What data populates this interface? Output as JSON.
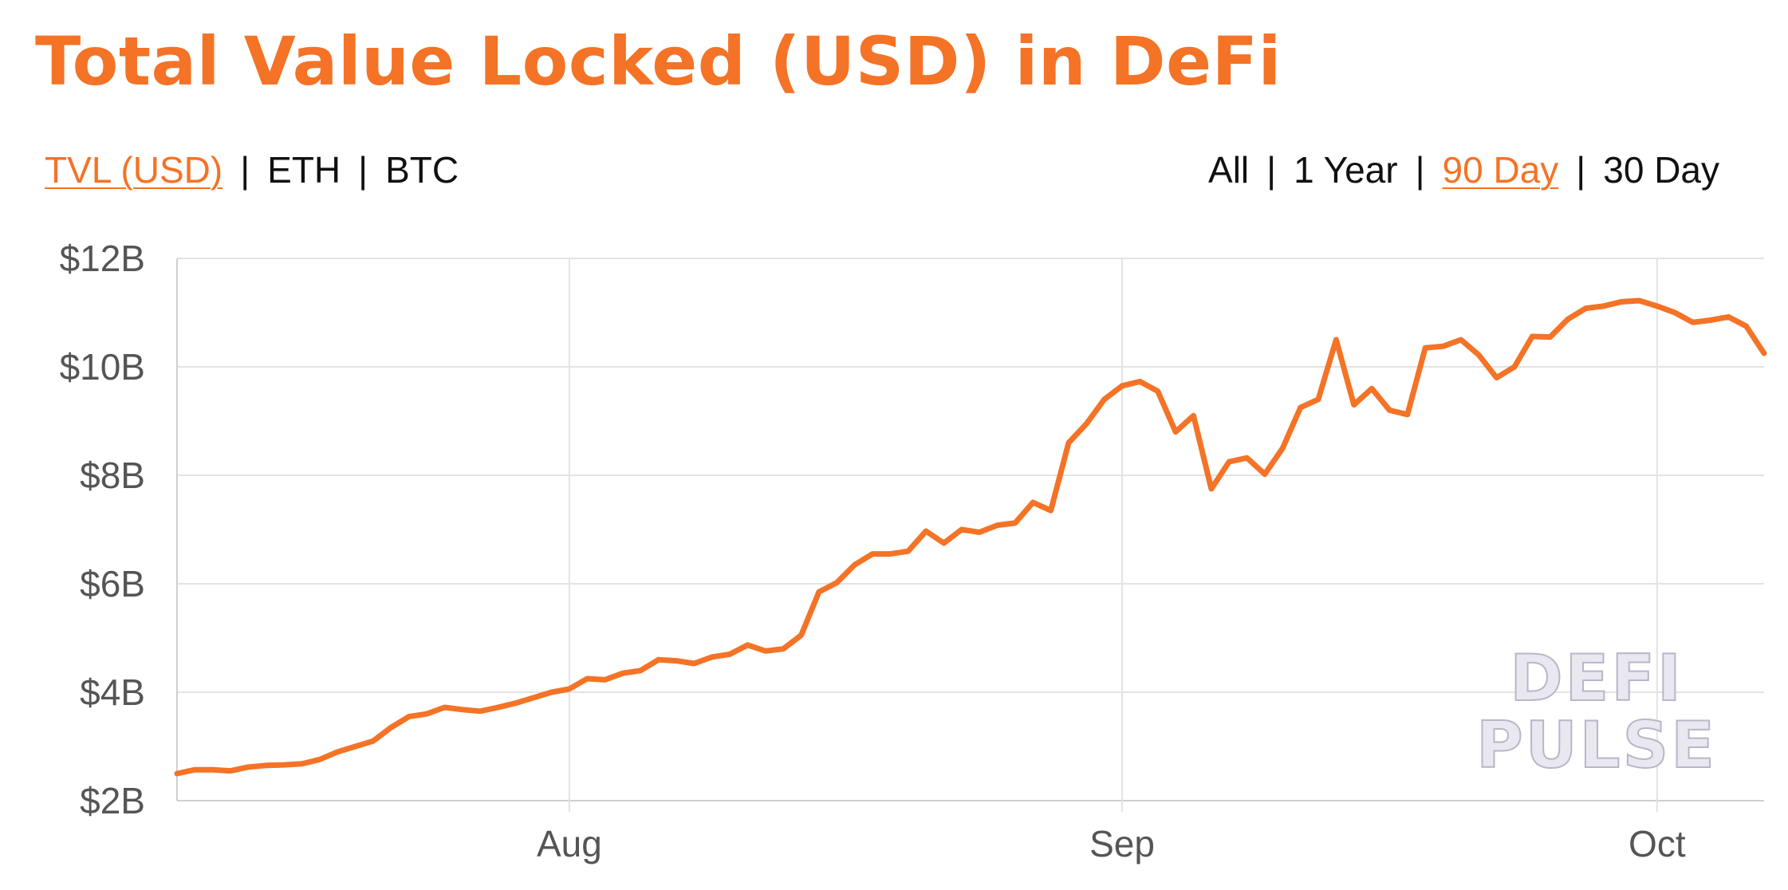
{
  "title": "Total Value Locked (USD) in DeFi",
  "metric_tabs": [
    {
      "label": "TVL (USD)",
      "active": true
    },
    {
      "label": "ETH",
      "active": false
    },
    {
      "label": "BTC",
      "active": false
    }
  ],
  "range_tabs": [
    {
      "label": "All",
      "active": false
    },
    {
      "label": "1 Year",
      "active": false
    },
    {
      "label": "90 Day",
      "active": true
    },
    {
      "label": "30 Day",
      "active": false
    }
  ],
  "separator": "|",
  "watermark": [
    "DEFI",
    "PULSE"
  ],
  "colors": {
    "accent": "#f47326",
    "grid": "#e3e3e3",
    "axis_text": "#555555"
  },
  "chart_data": {
    "type": "line",
    "title": "Total Value Locked (USD) in DeFi",
    "xlabel": "",
    "ylabel": "",
    "x_axis": "date",
    "xlim": [
      "2020-07-10",
      "2020-10-07"
    ],
    "ylim": [
      2,
      12
    ],
    "y_unit": "USD billions",
    "y_ticks": [
      {
        "value": 2,
        "label": "$2B"
      },
      {
        "value": 4,
        "label": "$4B"
      },
      {
        "value": 6,
        "label": "$6B"
      },
      {
        "value": 8,
        "label": "$8B"
      },
      {
        "value": 10,
        "label": "$10B"
      },
      {
        "value": 12,
        "label": "$12B"
      }
    ],
    "x_ticks": [
      {
        "value": "2020-08-01",
        "label": "Aug"
      },
      {
        "value": "2020-09-01",
        "label": "Sep"
      },
      {
        "value": "2020-10-01",
        "label": "Oct"
      }
    ],
    "grid": true,
    "legend": "none",
    "series": [
      {
        "color": "#f47326",
        "points": [
          [
            "2020-07-10",
            2.5
          ],
          [
            "2020-07-11",
            2.57
          ],
          [
            "2020-07-12",
            2.57
          ],
          [
            "2020-07-13",
            2.55
          ],
          [
            "2020-07-14",
            2.62
          ],
          [
            "2020-07-15",
            2.65
          ],
          [
            "2020-07-16",
            2.66
          ],
          [
            "2020-07-17",
            2.68
          ],
          [
            "2020-07-18",
            2.76
          ],
          [
            "2020-07-19",
            2.9
          ],
          [
            "2020-07-20",
            3.0
          ],
          [
            "2020-07-21",
            3.1
          ],
          [
            "2020-07-22",
            3.35
          ],
          [
            "2020-07-23",
            3.55
          ],
          [
            "2020-07-24",
            3.6
          ],
          [
            "2020-07-25",
            3.72
          ],
          [
            "2020-07-26",
            3.68
          ],
          [
            "2020-07-27",
            3.65
          ],
          [
            "2020-07-28",
            3.72
          ],
          [
            "2020-07-29",
            3.8
          ],
          [
            "2020-07-30",
            3.9
          ],
          [
            "2020-07-31",
            4.0
          ],
          [
            "2020-08-01",
            4.06
          ],
          [
            "2020-08-02",
            4.25
          ],
          [
            "2020-08-03",
            4.23
          ],
          [
            "2020-08-04",
            4.35
          ],
          [
            "2020-08-05",
            4.4
          ],
          [
            "2020-08-06",
            4.6
          ],
          [
            "2020-08-07",
            4.58
          ],
          [
            "2020-08-08",
            4.53
          ],
          [
            "2020-08-09",
            4.65
          ],
          [
            "2020-08-10",
            4.7
          ],
          [
            "2020-08-11",
            4.87
          ],
          [
            "2020-08-12",
            4.76
          ],
          [
            "2020-08-13",
            4.8
          ],
          [
            "2020-08-14",
            5.05
          ],
          [
            "2020-08-15",
            5.85
          ],
          [
            "2020-08-16",
            6.02
          ],
          [
            "2020-08-17",
            6.35
          ],
          [
            "2020-08-18",
            6.55
          ],
          [
            "2020-08-19",
            6.55
          ],
          [
            "2020-08-20",
            6.6
          ],
          [
            "2020-08-21",
            6.97
          ],
          [
            "2020-08-22",
            6.75
          ],
          [
            "2020-08-23",
            7.0
          ],
          [
            "2020-08-24",
            6.95
          ],
          [
            "2020-08-25",
            7.08
          ],
          [
            "2020-08-26",
            7.12
          ],
          [
            "2020-08-27",
            7.5
          ],
          [
            "2020-08-28",
            7.35
          ],
          [
            "2020-08-29",
            8.6
          ],
          [
            "2020-08-30",
            8.95
          ],
          [
            "2020-08-31",
            9.4
          ],
          [
            "2020-09-01",
            9.65
          ],
          [
            "2020-09-02",
            9.73
          ],
          [
            "2020-09-03",
            9.55
          ],
          [
            "2020-09-04",
            8.8
          ],
          [
            "2020-09-05",
            9.1
          ],
          [
            "2020-09-06",
            7.75
          ],
          [
            "2020-09-07",
            8.25
          ],
          [
            "2020-09-08",
            8.32
          ],
          [
            "2020-09-09",
            8.02
          ],
          [
            "2020-09-10",
            8.5
          ],
          [
            "2020-09-11",
            9.25
          ],
          [
            "2020-09-12",
            9.4
          ],
          [
            "2020-09-13",
            10.5
          ],
          [
            "2020-09-14",
            9.3
          ],
          [
            "2020-09-15",
            9.6
          ],
          [
            "2020-09-16",
            9.2
          ],
          [
            "2020-09-17",
            9.12
          ],
          [
            "2020-09-18",
            10.35
          ],
          [
            "2020-09-19",
            10.38
          ],
          [
            "2020-09-20",
            10.5
          ],
          [
            "2020-09-21",
            10.22
          ],
          [
            "2020-09-22",
            9.8
          ],
          [
            "2020-09-23",
            10.0
          ],
          [
            "2020-09-24",
            10.56
          ],
          [
            "2020-09-25",
            10.55
          ],
          [
            "2020-09-26",
            10.88
          ],
          [
            "2020-09-27",
            11.08
          ],
          [
            "2020-09-28",
            11.12
          ],
          [
            "2020-09-29",
            11.2
          ],
          [
            "2020-09-30",
            11.22
          ],
          [
            "2020-10-01",
            11.12
          ],
          [
            "2020-10-02",
            11.0
          ],
          [
            "2020-10-03",
            10.82
          ],
          [
            "2020-10-04",
            10.86
          ],
          [
            "2020-10-05",
            10.92
          ],
          [
            "2020-10-06",
            10.75
          ],
          [
            "2020-10-07",
            10.25
          ]
        ]
      }
    ]
  }
}
